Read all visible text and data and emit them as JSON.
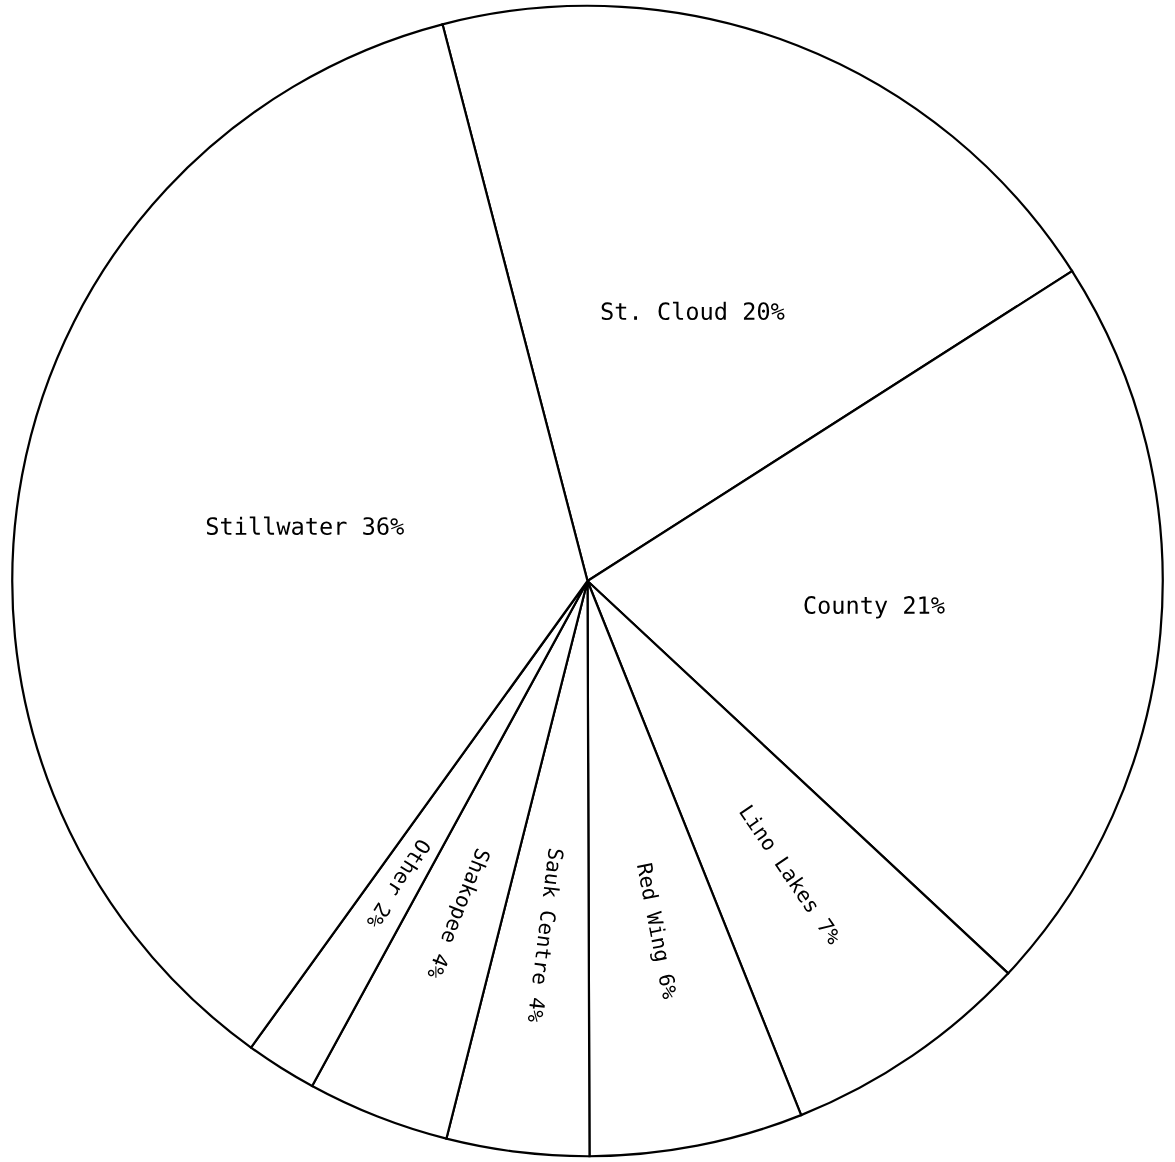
{
  "chart_data": {
    "type": "pie",
    "categories": [
      "St. Cloud",
      "County",
      "Lino Lakes",
      "Red Wing",
      "Sauk Centre",
      "Shakopee",
      "Other",
      "Stillwater"
    ],
    "values": [
      20,
      21,
      7,
      6,
      4,
      4,
      2,
      36
    ],
    "value_labels": [
      "20%",
      "21%",
      "7%",
      "6%",
      "4%",
      "4%",
      "2%",
      "36%"
    ],
    "colors": [
      "#ffffff",
      "#ffffff",
      "#ffffff",
      "#ffffff",
      "#ffffff",
      "#ffffff",
      "#ffffff",
      "#ffffff"
    ]
  }
}
